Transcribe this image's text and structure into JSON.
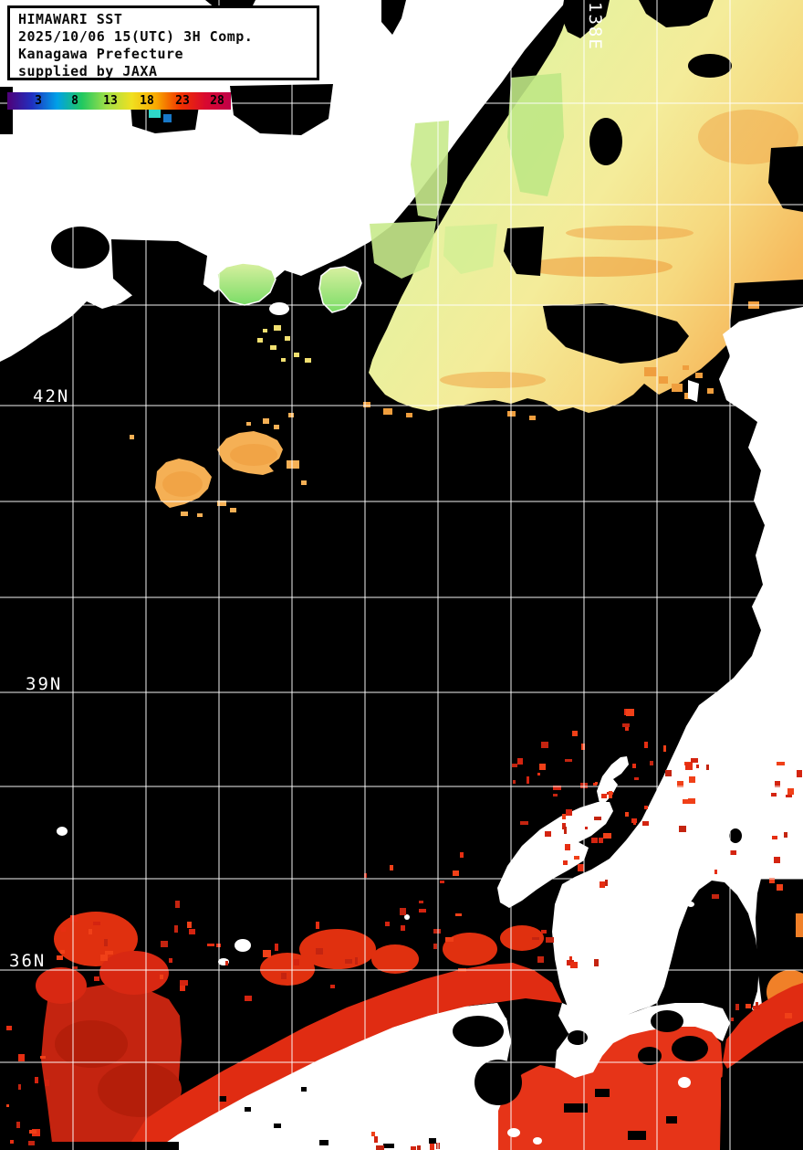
{
  "header": {
    "title": "HIMAWARI SST",
    "datetime": "2025/10/06 15(UTC) 3H Comp.",
    "region": "Kanagawa Prefecture",
    "credit": "supplied by JAXA"
  },
  "colorbar": {
    "ticks": [
      "3",
      "8",
      "13",
      "18",
      "23",
      "28"
    ],
    "stops": [
      "#500078",
      "#2030c0",
      "#00a0e8",
      "#20c860",
      "#a0e048",
      "#f0e020",
      "#f8a800",
      "#f03000",
      "#d80830",
      "#c00048"
    ]
  },
  "map": {
    "lat_labels": [
      "42N",
      "39N",
      "36N"
    ],
    "lon_label": "138E",
    "colors": {
      "sea": "#000000",
      "land": "#ffffff",
      "grid": "#ffffff",
      "red": "#e02c12",
      "red_dark": "#c42410",
      "red_bright": "#e63418",
      "orange": "#f5b055",
      "orange_deep": "#ef9e3e",
      "yellow": "#f2e070",
      "green": "#bfe785",
      "green_bright": "#6fdc60",
      "teal": "#2ed8c8",
      "blue": "#1878c8",
      "toyama_orange": "#f08028"
    }
  }
}
